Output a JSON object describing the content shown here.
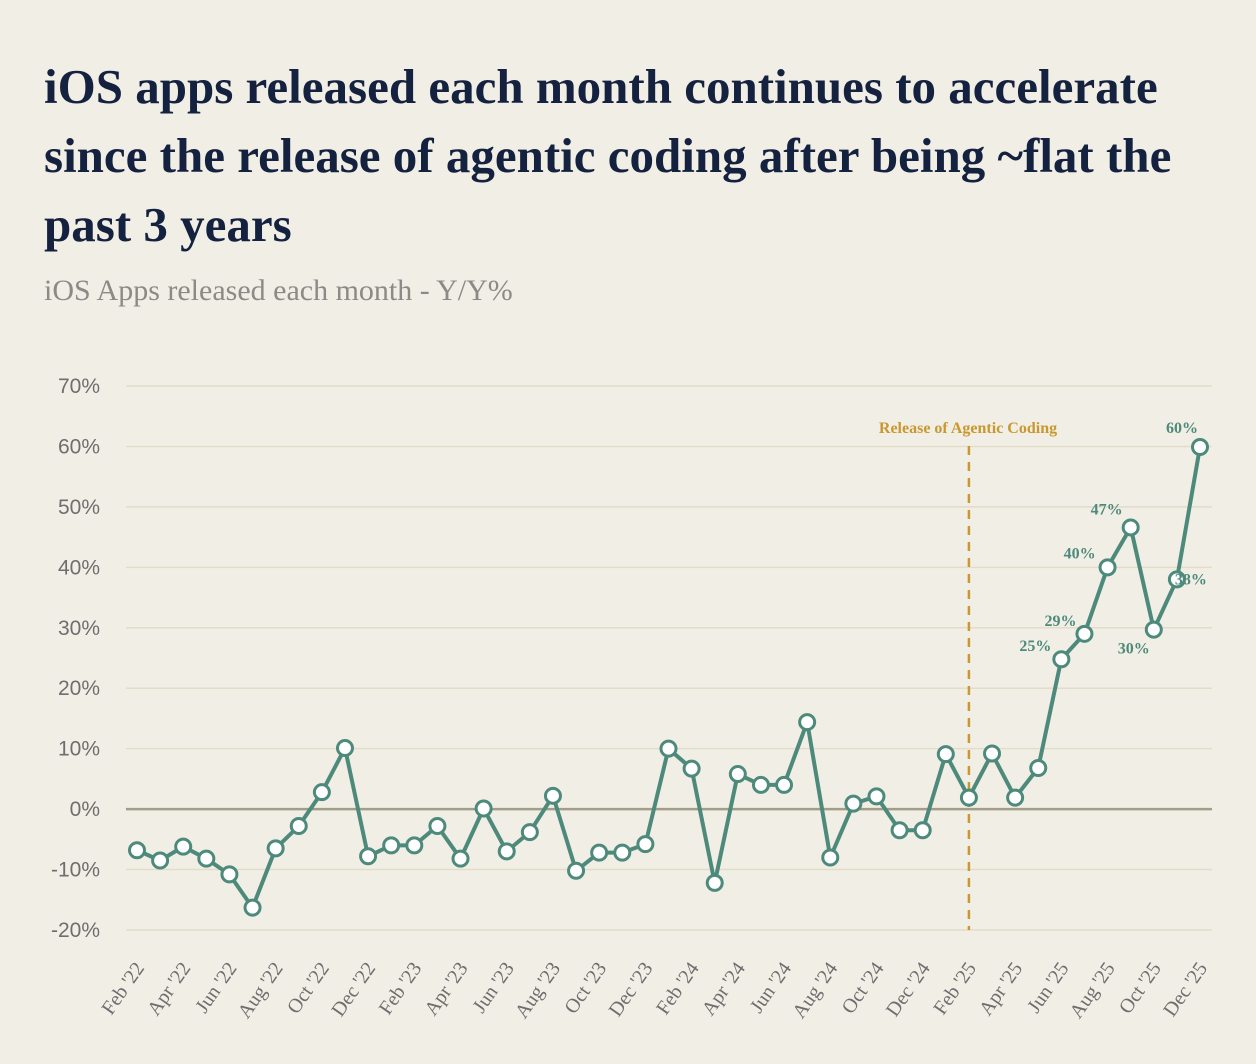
{
  "header": {
    "title": "iOS apps released each month continues to accelerate since the release of agentic coding after being ~flat the past 3 years",
    "subtitle": "iOS Apps released each month - Y/Y%"
  },
  "colors": {
    "background": "#f1eee6",
    "line": "#4d8a7b",
    "grid": "#e2dcc8",
    "zero_line": "#a29d86",
    "annotation": "#c9982f",
    "title": "#14213f"
  },
  "chart_data": {
    "type": "line",
    "title": "iOS apps released each month continues to accelerate since the release of agentic coding after being ~flat the past 3 years",
    "subtitle": "iOS Apps released each month - Y/Y%",
    "xlabel": "",
    "ylabel": "",
    "ylim": [
      -20,
      70
    ],
    "yticks": [
      -20,
      -10,
      0,
      10,
      20,
      30,
      40,
      50,
      60,
      70
    ],
    "ytick_labels": [
      "-20%",
      "-10%",
      "0%",
      "10%",
      "20%",
      "30%",
      "40%",
      "50%",
      "60%",
      "70%"
    ],
    "grid": true,
    "x": [
      "Feb '22",
      "Mar '22",
      "Apr '22",
      "May '22",
      "Jun '22",
      "Jul '22",
      "Aug '22",
      "Sep '22",
      "Oct '22",
      "Nov '22",
      "Dec '22",
      "Jan '23",
      "Feb '23",
      "Mar '23",
      "Apr '23",
      "May '23",
      "Jun '23",
      "Jul '23",
      "Aug '23",
      "Sep '23",
      "Oct '23",
      "Nov '23",
      "Dec '23",
      "Jan '24",
      "Feb '24",
      "Mar '24",
      "Apr '24",
      "May '24",
      "Jun '24",
      "Jul '24",
      "Aug '24",
      "Sep '24",
      "Oct '24",
      "Nov '24",
      "Dec '24",
      "Jan '25",
      "Feb '25",
      "Mar '25",
      "Apr '25",
      "May '25",
      "Jun '25",
      "Jul '25",
      "Aug '25",
      "Sep '25",
      "Oct '25",
      "Nov '25",
      "Dec '25"
    ],
    "x_tick_labels": [
      "Feb '22",
      "Apr '22",
      "Jun '22",
      "Aug '22",
      "Oct '22",
      "Dec '22",
      "Feb '23",
      "Apr '23",
      "Jun '23",
      "Aug '23",
      "Oct '23",
      "Dec '23",
      "Feb '24",
      "Apr '24",
      "Jun '24",
      "Aug '24",
      "Oct '24",
      "Dec '24",
      "Feb '25",
      "Apr '25",
      "Jun '25",
      "Aug '25",
      "Oct '25",
      "Dec '25"
    ],
    "series": [
      {
        "values": [
          -6.8,
          -8.5,
          -6.2,
          -8.2,
          -10.8,
          -16.3,
          -6.5,
          -2.8,
          2.8,
          10.1,
          -7.8,
          -6.0,
          -6.0,
          -2.8,
          -8.2,
          0.1,
          -7.0,
          -3.8,
          2.2,
          -10.2,
          -7.2,
          -7.2,
          -5.8,
          10.0,
          6.7,
          -12.2,
          5.8,
          4.0,
          4.0,
          14.4,
          -8.0,
          0.9,
          2.1,
          -3.5,
          -3.5,
          9.1,
          1.9,
          9.2,
          1.9,
          6.8,
          24.8,
          29.0,
          40.0,
          46.6,
          29.7,
          38.0,
          59.9
        ]
      }
    ],
    "data_labels": [
      {
        "x": "Jun '25",
        "text": "25%"
      },
      {
        "x": "Jul '25",
        "text": "29%"
      },
      {
        "x": "Aug '25",
        "text": "40%"
      },
      {
        "x": "Sep '25",
        "text": "47%"
      },
      {
        "x": "Oct '25",
        "text": "30%"
      },
      {
        "x": "Nov '25",
        "text": "38%"
      },
      {
        "x": "Dec '25",
        "text": "60%"
      }
    ],
    "annotations": [
      {
        "x": "Feb '25",
        "text": "Release of Agentic Coding",
        "style": "dashed-vertical-line"
      }
    ]
  }
}
